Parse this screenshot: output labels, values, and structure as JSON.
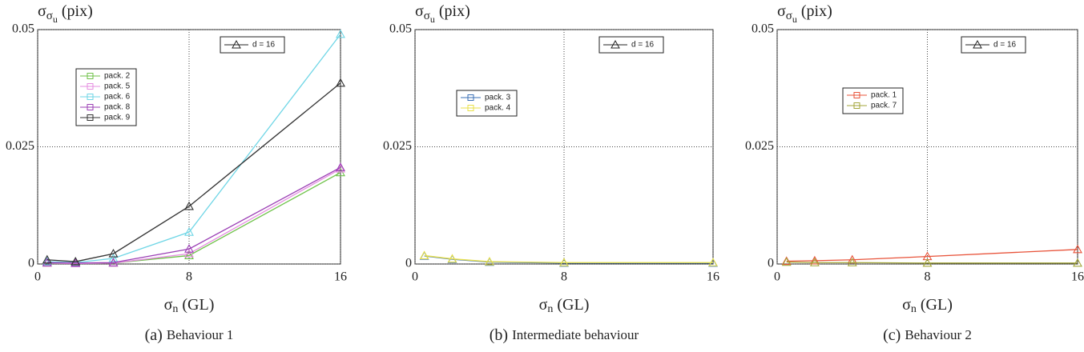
{
  "chart_data": [
    {
      "type": "line",
      "y_label": {
        "symbol": "σ",
        "sub": "σ",
        "subsub": "u",
        "unit": "(pix)"
      },
      "x_label": {
        "symbol": "σ",
        "sub": "n",
        "unit": "(GL)"
      },
      "caption": {
        "letter": "(a)",
        "text": "Behaviour 1"
      },
      "marker_legend": "d = 16",
      "x": [
        0.5,
        2,
        4,
        8,
        16
      ],
      "xlim": [
        0,
        16
      ],
      "xticks": [
        0,
        8,
        16
      ],
      "ylim": [
        0,
        0.05
      ],
      "yticks": [
        0,
        0.025,
        0.05
      ],
      "grid": true,
      "series": [
        {
          "name": "pack. 2",
          "color": "#6fc24a",
          "values": [
            0.0002,
            0.0001,
            0.0002,
            0.0018,
            0.0195
          ]
        },
        {
          "name": "pack. 5",
          "color": "#e58de0",
          "values": [
            0.0002,
            0.0001,
            0.0002,
            0.0022,
            0.0203
          ]
        },
        {
          "name": "pack. 6",
          "color": "#6fd6e6",
          "values": [
            0.0005,
            0.0003,
            0.0012,
            0.0068,
            0.049
          ]
        },
        {
          "name": "pack. 8",
          "color": "#9b3fb5",
          "values": [
            0.0003,
            0.0002,
            0.0003,
            0.0032,
            0.0206
          ]
        },
        {
          "name": "pack. 9",
          "color": "#333333",
          "values": [
            0.0009,
            0.0005,
            0.0022,
            0.0123,
            0.0386
          ]
        }
      ]
    },
    {
      "type": "line",
      "y_label": {
        "symbol": "σ",
        "sub": "σ",
        "subsub": "u",
        "unit": "(pix)"
      },
      "x_label": {
        "symbol": "σ",
        "sub": "n",
        "unit": "(GL)"
      },
      "caption": {
        "letter": "(b)",
        "text": "Intermediate behaviour"
      },
      "marker_legend": "d = 16",
      "x": [
        0.5,
        2,
        4,
        8,
        16
      ],
      "xlim": [
        0,
        16
      ],
      "xticks": [
        0,
        8,
        16
      ],
      "ylim": [
        0,
        0.05
      ],
      "yticks": [
        0,
        0.025,
        0.05
      ],
      "grid": true,
      "series": [
        {
          "name": "pack. 3",
          "color": "#3a6fb5",
          "values": [
            0.0017,
            0.001,
            0.0004,
            0.0002,
            0.0002
          ]
        },
        {
          "name": "pack. 4",
          "color": "#e8e04a",
          "values": [
            0.0018,
            0.0011,
            0.0005,
            0.0003,
            0.0003
          ]
        }
      ]
    },
    {
      "type": "line",
      "y_label": {
        "symbol": "σ",
        "sub": "σ",
        "subsub": "u",
        "unit": "(pix)"
      },
      "x_label": {
        "symbol": "σ",
        "sub": "n",
        "unit": "(GL)"
      },
      "caption": {
        "letter": "(c)",
        "text": "Behaviour 2"
      },
      "marker_legend": "d = 16",
      "x": [
        0.5,
        2,
        4,
        8,
        16
      ],
      "xlim": [
        0,
        16
      ],
      "xticks": [
        0,
        8,
        16
      ],
      "ylim": [
        0,
        0.05
      ],
      "yticks": [
        0,
        0.025,
        0.05
      ],
      "grid": true,
      "series": [
        {
          "name": "pack. 1",
          "color": "#e8533a",
          "values": [
            0.0006,
            0.0007,
            0.0009,
            0.0016,
            0.0031
          ]
        },
        {
          "name": "pack. 7",
          "color": "#a3a63a",
          "values": [
            0.0004,
            0.0003,
            0.0003,
            0.0002,
            0.0002
          ]
        }
      ]
    }
  ]
}
